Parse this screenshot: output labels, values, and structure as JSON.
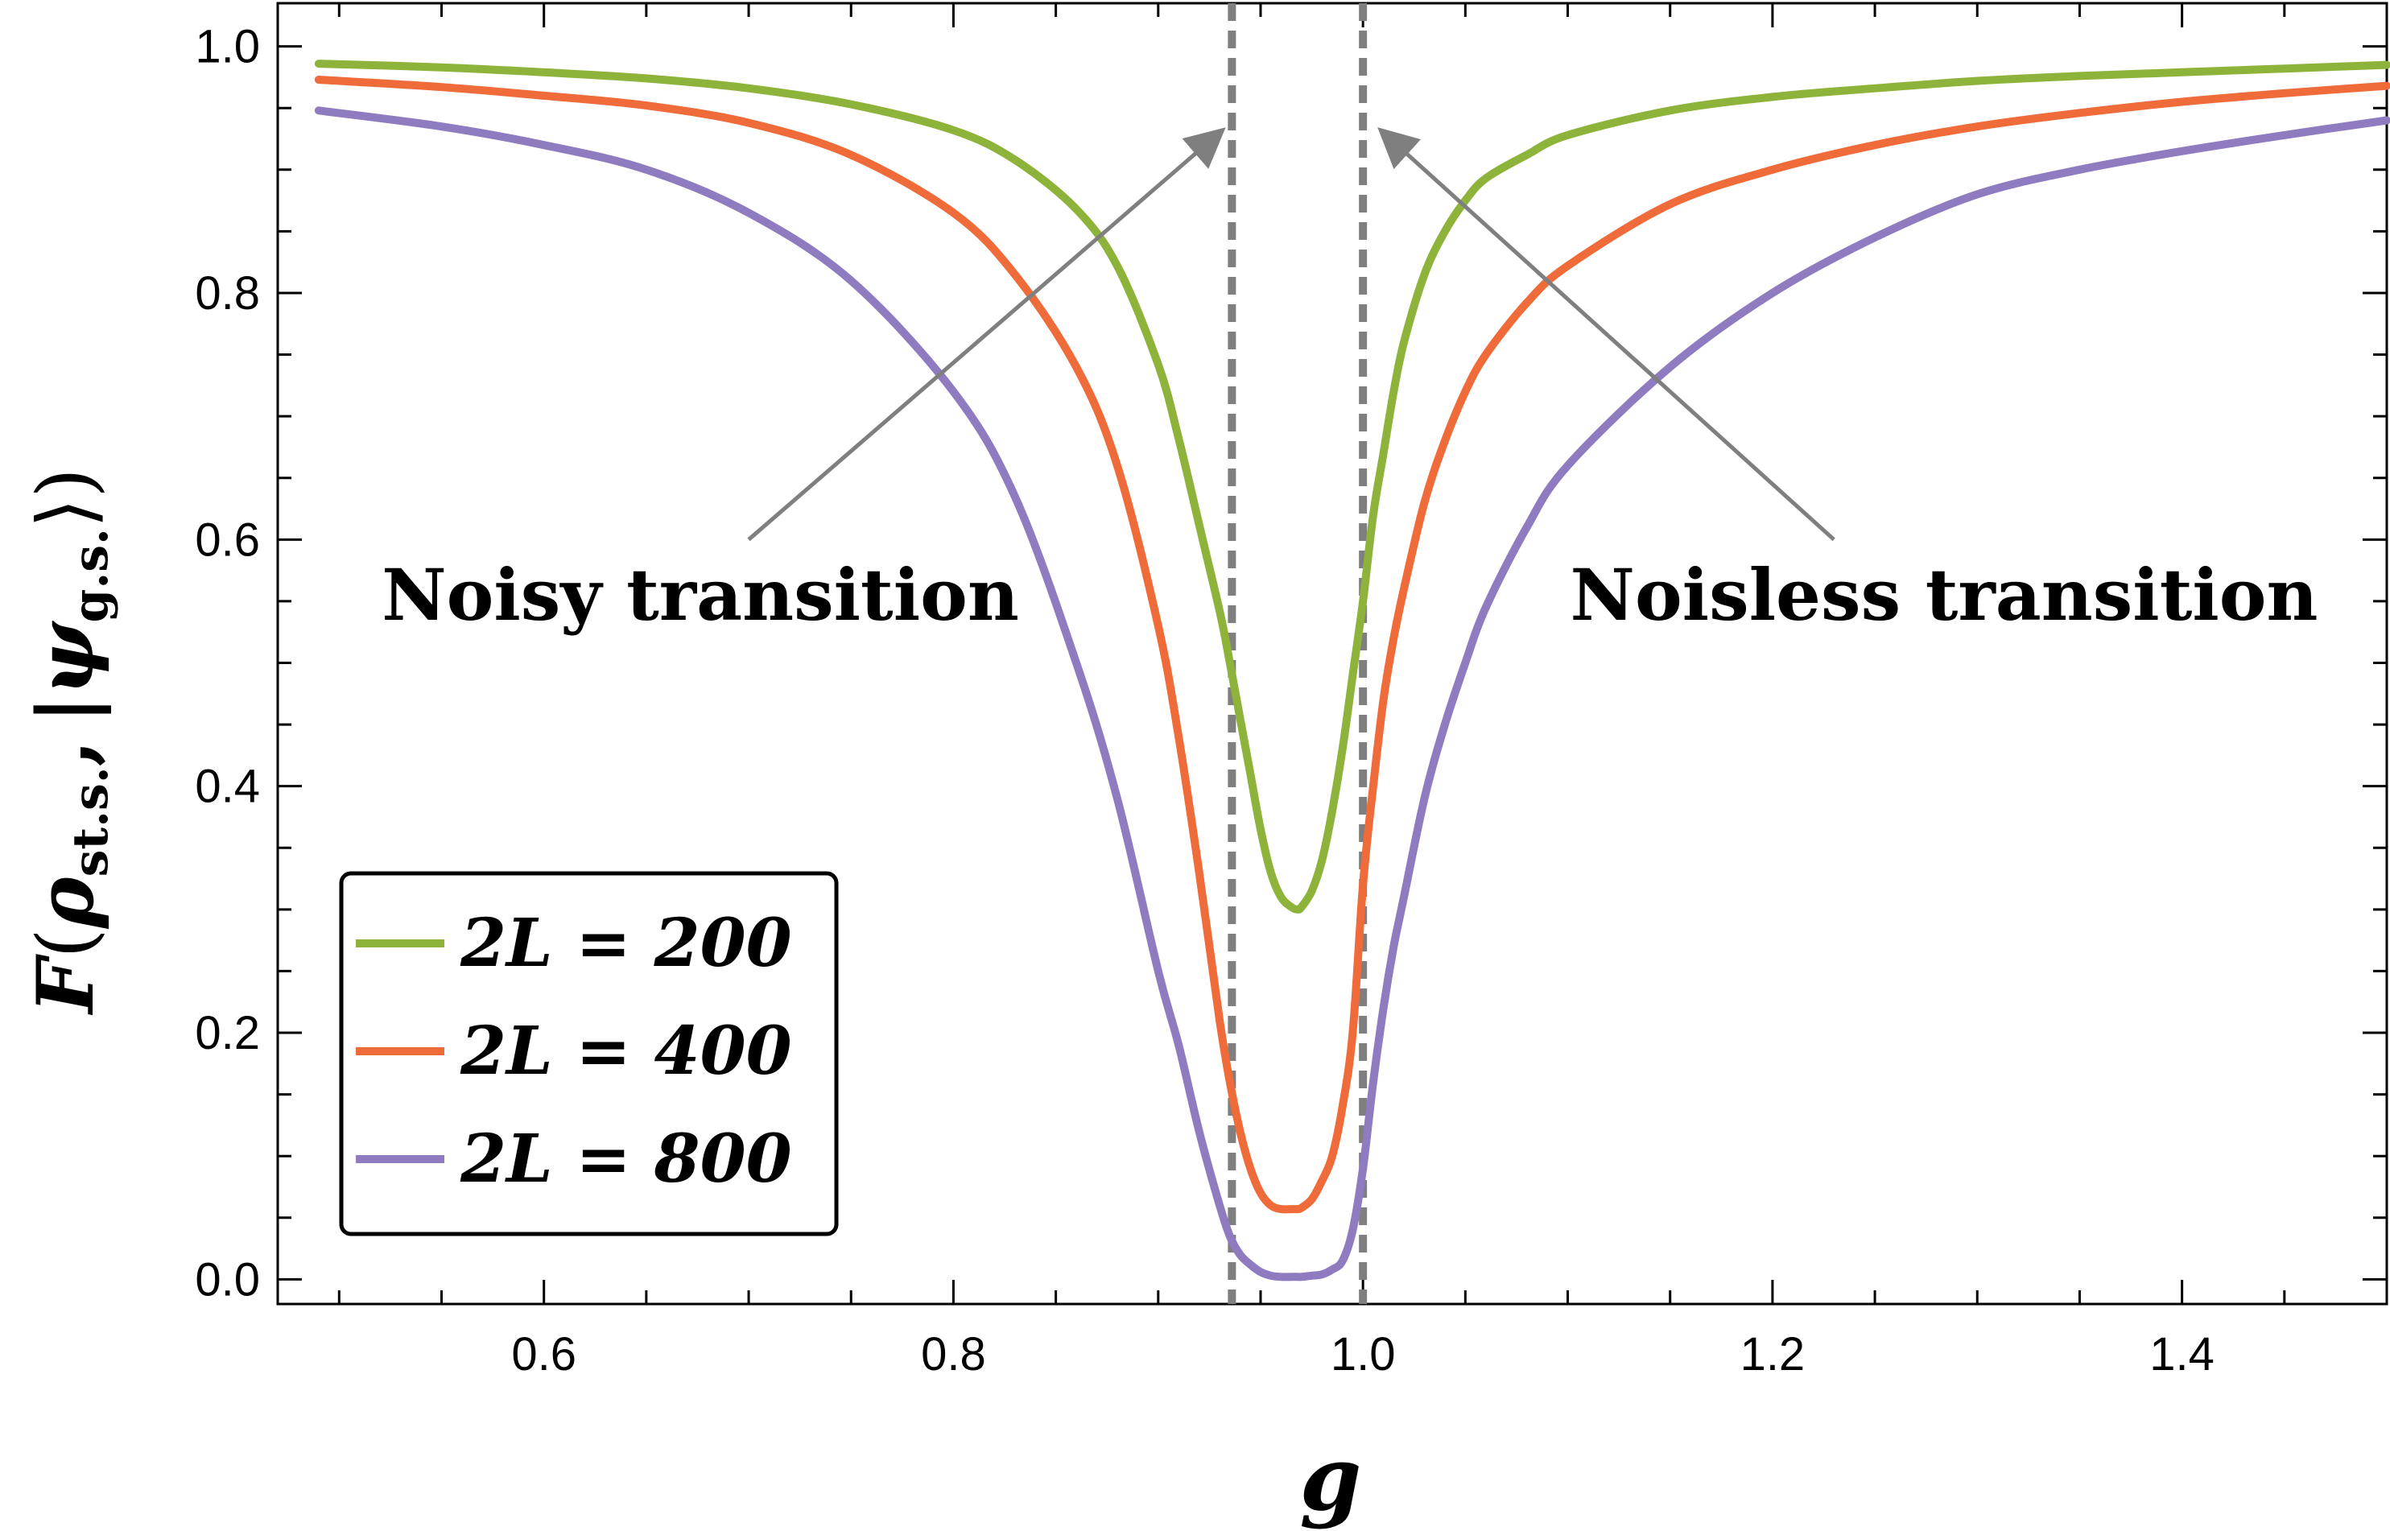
{
  "chart_data": {
    "type": "line",
    "xlabel": "g",
    "ylabel": "F(ρ_st.s., |ψ_g.s.⟩)",
    "ylabel_parts": {
      "f": "F",
      "rho": "ρ",
      "rho_sub": "st.s.",
      "comma": ",",
      "psi": "|ψ",
      "psi_sub": "g.s.",
      "close": "⟩)"
    },
    "xlim": [
      0.47,
      1.5
    ],
    "ylim": [
      -0.02,
      1.035
    ],
    "xticks": [
      0.6,
      0.8,
      1.0,
      1.2,
      1.4
    ],
    "xtick_labels": [
      "0.6",
      "0.8",
      "1.0",
      "1.2",
      "1.4"
    ],
    "yticks": [
      0.0,
      0.2,
      0.4,
      0.6,
      0.8,
      1.0
    ],
    "ytick_labels": [
      "0.0",
      "0.2",
      "0.4",
      "0.6",
      "0.8",
      "1.0"
    ],
    "dashed_vlines": [
      0.936,
      1.0
    ],
    "x": [
      0.49,
      0.55,
      0.6,
      0.65,
      0.7,
      0.75,
      0.8,
      0.83,
      0.86,
      0.88,
      0.9,
      0.91,
      0.92,
      0.93,
      0.935,
      0.94,
      0.945,
      0.95,
      0.955,
      0.96,
      0.965,
      0.968,
      0.97,
      0.975,
      0.98,
      0.985,
      0.99,
      0.995,
      1.0,
      1.005,
      1.01,
      1.015,
      1.02,
      1.03,
      1.04,
      1.05,
      1.06,
      1.08,
      1.1,
      1.15,
      1.2,
      1.25,
      1.3,
      1.35,
      1.4,
      1.45,
      1.5
    ],
    "series": [
      {
        "name": "2L = 200",
        "color": "#8db33a",
        "values": [
          0.986,
          0.983,
          0.979,
          0.974,
          0.966,
          0.953,
          0.932,
          0.908,
          0.868,
          0.822,
          0.742,
          0.682,
          0.612,
          0.542,
          0.5,
          0.455,
          0.41,
          0.365,
          0.33,
          0.31,
          0.302,
          0.3,
          0.302,
          0.315,
          0.34,
          0.38,
          0.43,
          0.49,
          0.55,
          0.62,
          0.67,
          0.72,
          0.76,
          0.815,
          0.85,
          0.875,
          0.893,
          0.912,
          0.928,
          0.948,
          0.959,
          0.966,
          0.972,
          0.976,
          0.979,
          0.982,
          0.985
        ]
      },
      {
        "name": "2L = 400",
        "color": "#ef6b3a",
        "values": [
          0.973,
          0.967,
          0.96,
          0.952,
          0.938,
          0.912,
          0.865,
          0.815,
          0.74,
          0.66,
          0.53,
          0.44,
          0.33,
          0.21,
          0.16,
          0.12,
          0.09,
          0.07,
          0.06,
          0.057,
          0.057,
          0.057,
          0.058,
          0.065,
          0.08,
          0.1,
          0.14,
          0.2,
          0.32,
          0.4,
          0.47,
          0.52,
          0.56,
          0.63,
          0.68,
          0.72,
          0.75,
          0.792,
          0.822,
          0.872,
          0.9,
          0.92,
          0.935,
          0.946,
          0.955,
          0.962,
          0.968
        ]
      },
      {
        "name": "2L = 800",
        "color": "#8e7bc0",
        "values": [
          0.948,
          0.935,
          0.92,
          0.9,
          0.865,
          0.81,
          0.72,
          0.635,
          0.5,
          0.39,
          0.25,
          0.19,
          0.12,
          0.06,
          0.035,
          0.02,
          0.012,
          0.006,
          0.003,
          0.002,
          0.002,
          0.002,
          0.002,
          0.003,
          0.004,
          0.008,
          0.015,
          0.04,
          0.09,
          0.16,
          0.22,
          0.27,
          0.31,
          0.39,
          0.45,
          0.5,
          0.545,
          0.61,
          0.66,
          0.74,
          0.8,
          0.845,
          0.88,
          0.9,
          0.915,
          0.928,
          0.94
        ]
      }
    ],
    "annotations": [
      {
        "text": "Noisy transition",
        "arrow_from": [
          0.7,
          0.6
        ],
        "arrow_to": [
          0.93,
          0.93
        ]
      },
      {
        "text": "Noisless transition",
        "arrow_from": [
          1.23,
          0.6
        ],
        "arrow_to": [
          1.01,
          0.93
        ]
      }
    ],
    "legend_position": "bottom-left",
    "legend_entries": [
      "2L = 200",
      "2L = 400",
      "2L = 800"
    ]
  }
}
